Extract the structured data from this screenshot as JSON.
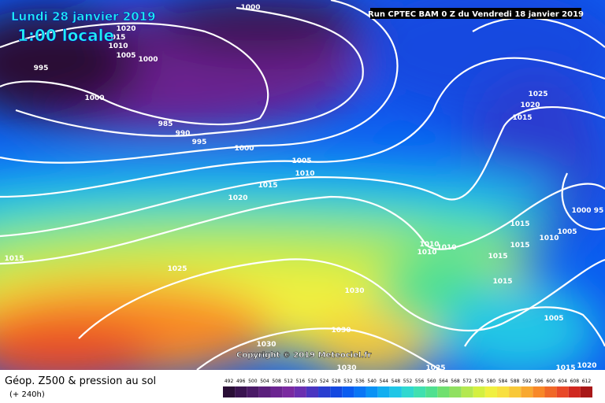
{
  "header": {
    "date": "Lundi 28 janvier 2019",
    "time": "1:00 locale",
    "run": "Run CPTEC BAM 0 Z du Vendredi 18 janvier 2019"
  },
  "isobar_labels": [
    "1000",
    "1020",
    "015",
    "1010",
    "1005",
    "1000",
    "995",
    "1000",
    "985",
    "990",
    "995",
    "1000",
    "1005",
    "1010",
    "1015",
    "1020",
    "1015",
    "1025",
    "1030",
    "1030",
    "1030",
    "1030",
    "1025",
    "1025",
    "1020",
    "1015",
    "1000",
    "95",
    "1015",
    "1005",
    "1010",
    "1015",
    "1015",
    "1010",
    "1010",
    "1010",
    "1015",
    "1005",
    "1015",
    "1020"
  ],
  "copyright": "Copyright © 2019 Meteociel.fr",
  "footer": {
    "title": "Géop. Z500 & pression au sol",
    "lead": "(+ 240h)"
  },
  "scale": {
    "labels": [
      "492",
      "496",
      "500",
      "504",
      "508",
      "512",
      "516",
      "520",
      "524",
      "528",
      "532",
      "536",
      "540",
      "544",
      "548",
      "552",
      "556",
      "560",
      "564",
      "568",
      "572",
      "576",
      "580",
      "584",
      "588",
      "592",
      "596",
      "600",
      "604",
      "608",
      "612"
    ],
    "colors": [
      "#2a0f36",
      "#3a1450",
      "#4a1a66",
      "#5b1f7c",
      "#6b2490",
      "#7a2aa0",
      "#6a2fb0",
      "#4a35c0",
      "#2a3ed0",
      "#1448e0",
      "#0b5cf0",
      "#0a76f5",
      "#0a92f5",
      "#12aef0",
      "#20c6e6",
      "#30d8d0",
      "#40e0b0",
      "#50e090",
      "#70e070",
      "#90e060",
      "#b4e850",
      "#d4f040",
      "#f0f040",
      "#f8e040",
      "#f8c838",
      "#f8a830",
      "#f88828",
      "#f06828",
      "#e84828",
      "#d02820",
      "#a81818"
    ]
  }
}
